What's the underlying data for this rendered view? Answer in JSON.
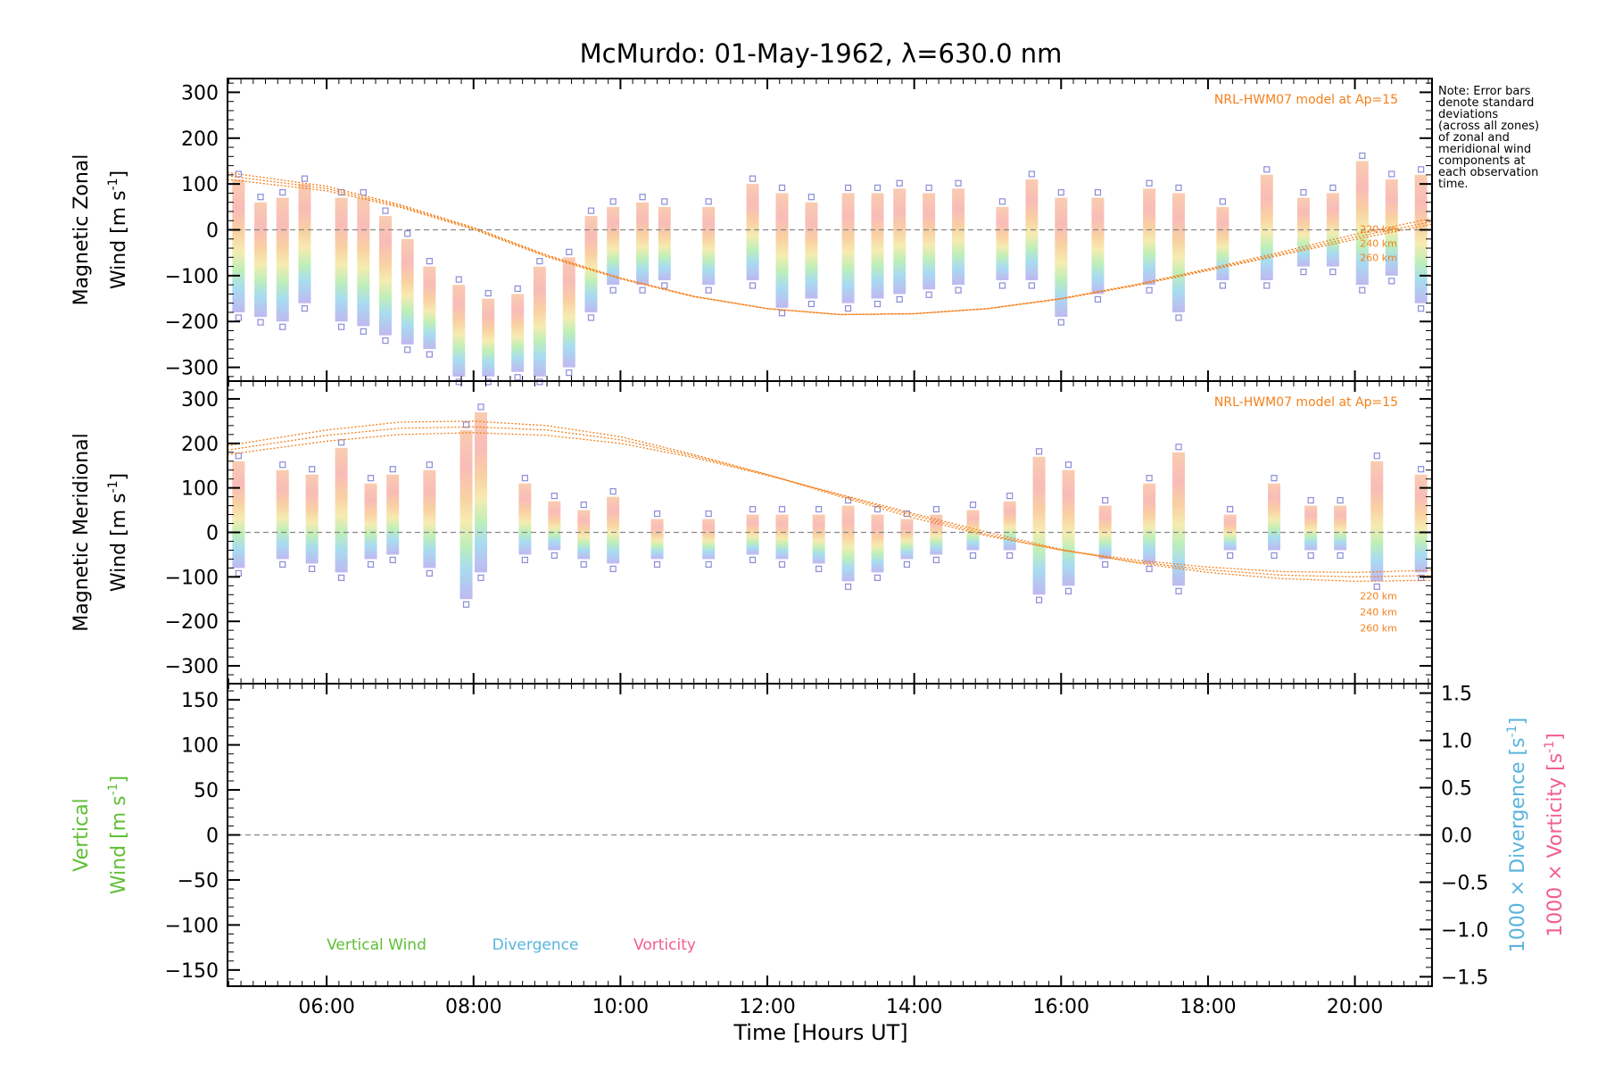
{
  "title": "McMurdo: 01-May-1962, λ=630.0 nm",
  "x_axis": {
    "label": "Time [Hours UT]",
    "range_hours": [
      4.65,
      21.05
    ],
    "ticks": [
      "06:00",
      "08:00",
      "10:00",
      "12:00",
      "14:00",
      "16:00",
      "18:00",
      "20:00"
    ],
    "tick_hours": [
      6,
      8,
      10,
      12,
      14,
      16,
      18,
      20
    ]
  },
  "note_lines": [
    "Note: Error bars",
    "denote standard",
    "deviations",
    "(across all zones)",
    "of zonal and",
    "meridional wind",
    "components at",
    "each observation",
    "time."
  ],
  "colors": {
    "model": "#f4801c",
    "error_bar": "#8c8cd9",
    "vertical": "#5fbf34",
    "divergence": "#59b4dc",
    "vorticity": "#f25d8f",
    "zero_line": "#888888"
  },
  "panels": [
    {
      "id": "zonal",
      "ylabel_line1": "Magnetic Zonal",
      "ylabel_line2_prefix": "Wind [m s",
      "ylabel_sup": "-1",
      "ylabel_line2_suffix": "]",
      "ylim": [
        -330,
        330
      ],
      "yticks": [
        "300",
        "200",
        "100",
        "0",
        "−100",
        "−200",
        "−300"
      ],
      "ytick_values": [
        300,
        200,
        100,
        0,
        -100,
        -200,
        -300
      ],
      "model_label": "NRL-HWM07 model at Ap=15",
      "model_altitudes": [
        "220 km",
        "240 km",
        "260 km"
      ]
    },
    {
      "id": "meridional",
      "ylabel_line1": "Magnetic Meridional",
      "ylabel_line2_prefix": "Wind [m s",
      "ylabel_sup": "-1",
      "ylabel_line2_suffix": "]",
      "ylim": [
        -340,
        340
      ],
      "yticks": [
        "300",
        "200",
        "100",
        "0",
        "−100",
        "−200",
        "−300"
      ],
      "ytick_values": [
        300,
        200,
        100,
        0,
        -100,
        -200,
        -300
      ],
      "model_label": "NRL-HWM07 model at Ap=15",
      "model_altitudes": [
        "220 km",
        "240 km",
        "260 km"
      ]
    },
    {
      "id": "vertical",
      "ylabel_line1": "Vertical",
      "ylabel_line2_prefix": "Wind [m s",
      "ylabel_sup": "-1",
      "ylabel_line2_suffix": "]",
      "ylim": [
        -168,
        168
      ],
      "yticks": [
        "150",
        "100",
        "50",
        "0",
        "−50",
        "−100",
        "−150"
      ],
      "ytick_values": [
        150,
        100,
        50,
        0,
        -50,
        -100,
        -150
      ],
      "right_ylim": [
        -1.6,
        1.6
      ],
      "right_yticks": [
        "1.5",
        "1.0",
        "0.5",
        "0.0",
        "−0.5",
        "−1.0",
        "−1.5"
      ],
      "right_ytick_values": [
        1.5,
        1.0,
        0.5,
        0.0,
        -0.5,
        -1.0,
        -1.5
      ],
      "right_label_div": "1000 × Divergence [s",
      "right_label_vort": "1000 × Vorticity [s",
      "right_label_sup": "-1",
      "right_label_suffix": "]",
      "legend": [
        "Vertical Wind",
        "Divergence",
        "Vorticity"
      ]
    }
  ],
  "chart_data": [
    {
      "type": "scatter",
      "title": "McMurdo: 01-May-1962, λ=630.0 nm",
      "xlabel": "Time [Hours UT]",
      "ylabel": "Magnetic Zonal Wind [m s-1]",
      "ylim": [
        -330,
        330
      ],
      "grid": false,
      "zero_line": true,
      "series": [
        {
          "name": "NRL-HWM07 model at Ap=15 (220 km)",
          "x": [
            4.65,
            6,
            7,
            8,
            9,
            10,
            11,
            12,
            13,
            14,
            15,
            16,
            17,
            18,
            19,
            20,
            21.05
          ],
          "values": [
            125,
            95,
            55,
            5,
            -55,
            -105,
            -145,
            -172,
            -185,
            -183,
            -172,
            -150,
            -120,
            -85,
            -48,
            -10,
            25
          ]
        },
        {
          "name": "NRL-HWM07 model at Ap=15 (240 km)",
          "x": [
            4.65,
            6,
            7,
            8,
            9,
            10,
            11,
            12,
            13,
            14,
            15,
            16,
            17,
            18,
            19,
            20,
            21.05
          ],
          "values": [
            118,
            90,
            52,
            3,
            -57,
            -106,
            -145,
            -172,
            -185,
            -183,
            -172,
            -150,
            -121,
            -87,
            -52,
            -16,
            18
          ]
        },
        {
          "name": "NRL-HWM07 model at Ap=15 (260 km)",
          "x": [
            4.65,
            6,
            7,
            8,
            9,
            10,
            11,
            12,
            13,
            14,
            15,
            16,
            17,
            18,
            19,
            20,
            21.05
          ],
          "values": [
            110,
            85,
            49,
            1,
            -59,
            -107,
            -146,
            -172,
            -185,
            -183,
            -172,
            -151,
            -122,
            -89,
            -55,
            -21,
            12
          ]
        }
      ],
      "observations": [
        {
          "x": 4.8,
          "low": -180,
          "high": 110
        },
        {
          "x": 5.1,
          "low": -190,
          "high": 60
        },
        {
          "x": 5.4,
          "low": -200,
          "high": 70
        },
        {
          "x": 5.7,
          "low": -160,
          "high": 100
        },
        {
          "x": 6.2,
          "low": -200,
          "high": 70
        },
        {
          "x": 6.5,
          "low": -210,
          "high": 70
        },
        {
          "x": 6.8,
          "low": -230,
          "high": 30
        },
        {
          "x": 7.1,
          "low": -250,
          "high": -20
        },
        {
          "x": 7.4,
          "low": -260,
          "high": -80
        },
        {
          "x": 7.8,
          "low": -320,
          "high": -120
        },
        {
          "x": 8.2,
          "low": -320,
          "high": -150
        },
        {
          "x": 8.6,
          "low": -310,
          "high": -140
        },
        {
          "x": 8.9,
          "low": -320,
          "high": -80
        },
        {
          "x": 9.3,
          "low": -300,
          "high": -60
        },
        {
          "x": 9.6,
          "low": -180,
          "high": 30
        },
        {
          "x": 9.9,
          "low": -120,
          "high": 50
        },
        {
          "x": 10.3,
          "low": -120,
          "high": 60
        },
        {
          "x": 10.6,
          "low": -110,
          "high": 50
        },
        {
          "x": 11.2,
          "low": -120,
          "high": 50
        },
        {
          "x": 11.8,
          "low": -110,
          "high": 100
        },
        {
          "x": 12.2,
          "low": -170,
          "high": 80
        },
        {
          "x": 12.6,
          "low": -150,
          "high": 60
        },
        {
          "x": 13.1,
          "low": -160,
          "high": 80
        },
        {
          "x": 13.5,
          "low": -150,
          "high": 80
        },
        {
          "x": 13.8,
          "low": -140,
          "high": 90
        },
        {
          "x": 14.2,
          "low": -130,
          "high": 80
        },
        {
          "x": 14.6,
          "low": -120,
          "high": 90
        },
        {
          "x": 15.2,
          "low": -110,
          "high": 50
        },
        {
          "x": 15.6,
          "low": -110,
          "high": 110
        },
        {
          "x": 16.0,
          "low": -190,
          "high": 70
        },
        {
          "x": 16.5,
          "low": -140,
          "high": 70
        },
        {
          "x": 17.2,
          "low": -120,
          "high": 90
        },
        {
          "x": 17.6,
          "low": -180,
          "high": 80
        },
        {
          "x": 18.2,
          "low": -110,
          "high": 50
        },
        {
          "x": 18.8,
          "low": -110,
          "high": 120
        },
        {
          "x": 19.3,
          "low": -80,
          "high": 70
        },
        {
          "x": 19.7,
          "low": -80,
          "high": 80
        },
        {
          "x": 20.1,
          "low": -120,
          "high": 150
        },
        {
          "x": 20.5,
          "low": -100,
          "high": 110
        },
        {
          "x": 20.9,
          "low": -160,
          "high": 120
        }
      ]
    },
    {
      "type": "scatter",
      "xlabel": "Time [Hours UT]",
      "ylabel": "Magnetic Meridional Wind [m s-1]",
      "ylim": [
        -340,
        340
      ],
      "grid": false,
      "zero_line": true,
      "series": [
        {
          "name": "NRL-HWM07 model at Ap=15 (220 km)",
          "x": [
            4.65,
            6,
            7,
            8,
            9,
            10,
            11,
            12,
            13,
            14,
            15,
            16,
            17,
            18,
            19,
            20,
            21.05
          ],
          "values": [
            195,
            230,
            248,
            250,
            240,
            215,
            175,
            130,
            80,
            32,
            -8,
            -40,
            -62,
            -78,
            -88,
            -90,
            -85
          ]
        },
        {
          "name": "NRL-HWM07 model at Ap=15 (240 km)",
          "x": [
            4.65,
            6,
            7,
            8,
            9,
            10,
            11,
            12,
            13,
            14,
            15,
            16,
            17,
            18,
            19,
            20,
            21.05
          ],
          "values": [
            185,
            218,
            234,
            237,
            230,
            208,
            172,
            130,
            83,
            38,
            -5,
            -40,
            -66,
            -84,
            -96,
            -100,
            -97
          ]
        },
        {
          "name": "NRL-HWM07 model at Ap=15 (260 km)",
          "x": [
            4.65,
            6,
            7,
            8,
            9,
            10,
            11,
            12,
            13,
            14,
            15,
            16,
            17,
            18,
            19,
            20,
            21.05
          ],
          "values": [
            175,
            205,
            220,
            224,
            218,
            200,
            168,
            128,
            85,
            42,
            0,
            -38,
            -68,
            -90,
            -104,
            -110,
            -108
          ]
        }
      ],
      "observations": [
        {
          "x": 4.8,
          "low": -80,
          "high": 160
        },
        {
          "x": 5.4,
          "low": -60,
          "high": 140
        },
        {
          "x": 5.8,
          "low": -70,
          "high": 130
        },
        {
          "x": 6.2,
          "low": -90,
          "high": 190
        },
        {
          "x": 6.6,
          "low": -60,
          "high": 110
        },
        {
          "x": 6.9,
          "low": -50,
          "high": 130
        },
        {
          "x": 7.4,
          "low": -80,
          "high": 140
        },
        {
          "x": 7.9,
          "low": -150,
          "high": 230
        },
        {
          "x": 8.1,
          "low": -90,
          "high": 270
        },
        {
          "x": 8.7,
          "low": -50,
          "high": 110
        },
        {
          "x": 9.1,
          "low": -40,
          "high": 70
        },
        {
          "x": 9.5,
          "low": -60,
          "high": 50
        },
        {
          "x": 9.9,
          "low": -70,
          "high": 80
        },
        {
          "x": 10.5,
          "low": -60,
          "high": 30
        },
        {
          "x": 11.2,
          "low": -60,
          "high": 30
        },
        {
          "x": 11.8,
          "low": -50,
          "high": 40
        },
        {
          "x": 12.2,
          "low": -60,
          "high": 40
        },
        {
          "x": 12.7,
          "low": -70,
          "high": 40
        },
        {
          "x": 13.1,
          "low": -110,
          "high": 60
        },
        {
          "x": 13.5,
          "low": -90,
          "high": 40
        },
        {
          "x": 13.9,
          "low": -60,
          "high": 30
        },
        {
          "x": 14.3,
          "low": -50,
          "high": 40
        },
        {
          "x": 14.8,
          "low": -40,
          "high": 50
        },
        {
          "x": 15.3,
          "low": -40,
          "high": 70
        },
        {
          "x": 15.7,
          "low": -140,
          "high": 170
        },
        {
          "x": 16.1,
          "low": -120,
          "high": 140
        },
        {
          "x": 16.6,
          "low": -60,
          "high": 60
        },
        {
          "x": 17.2,
          "low": -70,
          "high": 110
        },
        {
          "x": 17.6,
          "low": -120,
          "high": 180
        },
        {
          "x": 18.3,
          "low": -40,
          "high": 40
        },
        {
          "x": 18.9,
          "low": -40,
          "high": 110
        },
        {
          "x": 19.4,
          "low": -40,
          "high": 60
        },
        {
          "x": 19.8,
          "low": -40,
          "high": 60
        },
        {
          "x": 20.3,
          "low": -110,
          "high": 160
        },
        {
          "x": 20.9,
          "low": -90,
          "high": 130
        }
      ]
    },
    {
      "type": "line",
      "xlabel": "Time [Hours UT]",
      "ylabel": "Vertical Wind [m s-1]",
      "ylim": [
        -168,
        168
      ],
      "right_ylabel": "1000 × Divergence [s-1] / 1000 × Vorticity [s-1]",
      "right_ylim": [
        -1.6,
        1.6
      ],
      "grid": false,
      "zero_line": true,
      "series": [
        {
          "name": "Vertical Wind",
          "x": [],
          "values": []
        },
        {
          "name": "Divergence",
          "x": [],
          "values": []
        },
        {
          "name": "Vorticity",
          "x": [],
          "values": []
        }
      ]
    }
  ]
}
